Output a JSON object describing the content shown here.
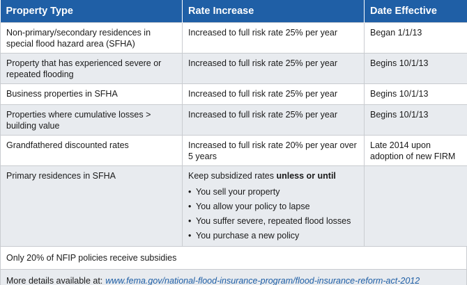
{
  "table": {
    "headers": [
      "Property Type",
      "Rate Increase",
      "Date Effective"
    ],
    "rows": [
      {
        "property": "Non-primary/secondary residences in special flood hazard area (SFHA)",
        "rate": "Increased to full risk rate 25% per year",
        "date": "Began 1/1/13"
      },
      {
        "property": "Property that has experienced severe or repeated flooding",
        "rate": "Increased to full risk rate 25% per year",
        "date": "Begins 10/1/13"
      },
      {
        "property": "Business properties in SFHA",
        "rate": "Increased to full risk rate 25% per year",
        "date": "Begins 10/1/13"
      },
      {
        "property": "Properties where cumulative losses > building value",
        "rate": "Increased to full risk rate 25% per year",
        "date": "Begins 10/1/13"
      },
      {
        "property": "Grandfathered discounted rates",
        "rate": "Increased to full risk rate 20% per year over 5 years",
        "date": "Late 2014 upon adoption of new FIRM"
      },
      {
        "property": "Primary residences in SFHA",
        "rate_intro": "Keep subsidized rates",
        "rate_emphasis": "unless or until",
        "bullet_glyph": "•",
        "bullets": [
          "You sell your property",
          "You allow your policy to lapse",
          "You suffer severe, repeated flood losses",
          "You purchase a new policy"
        ],
        "date": ""
      }
    ]
  },
  "footer": {
    "subsidy_note": "Only 20% of NFIP policies receive subsidies",
    "details_label": "More details available at:",
    "details_link": "www.fema.gov/national-flood-insurance-program/flood-insurance-reform-act-2012"
  },
  "colors": {
    "header_bg": "#1f5fa6",
    "alt_row_bg": "#e8ebef",
    "link": "#1f5fa6"
  }
}
